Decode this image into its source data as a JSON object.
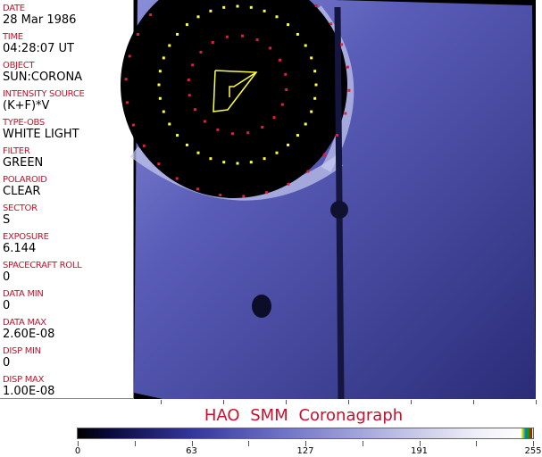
{
  "header_fields": [
    {
      "label": "DATE",
      "value": "28 Mar 1986"
    },
    {
      "label": "TIME",
      "value": "04:28:07 UT"
    },
    {
      "label": "OBJECT",
      "value": "SUN:CORONA"
    },
    {
      "label": "INTENSITY SOURCE",
      "value": "(K+F)*V"
    },
    {
      "label": "TYPE-OBS",
      "value": "WHITE LIGHT"
    },
    {
      "label": "FILTER",
      "value": "GREEN"
    },
    {
      "label": "POLAROID",
      "value": "CLEAR"
    },
    {
      "label": "SECTOR",
      "value": "S"
    },
    {
      "label": "EXPOSURE",
      "value": "6.144"
    },
    {
      "label": "SPACECRAFT ROLL",
      "value": "0"
    },
    {
      "label": "DATA MIN",
      "value": "0"
    },
    {
      "label": "DATA MAX",
      "value": "2.60E-08"
    },
    {
      "label": "DISP MIN",
      "value": "0"
    },
    {
      "label": "DISP MAX",
      "value": "1.00E-08"
    }
  ],
  "title": "HAO  SMM Coronagraph",
  "colorbar": {
    "ticks": [
      "0",
      "63",
      "127",
      "191",
      "255"
    ],
    "colors": {
      "dark": "#000000",
      "mid": "#6f72c6",
      "light": "#ffffff"
    }
  },
  "colors": {
    "label": "#c8102e",
    "marker_red": "#e0203a",
    "marker_yellow": "#ffff40"
  }
}
